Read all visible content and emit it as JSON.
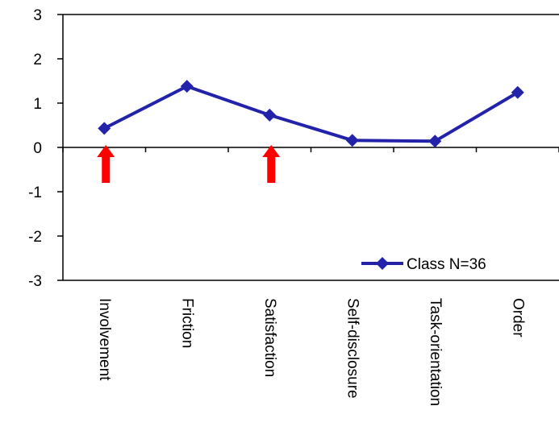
{
  "chart_data": {
    "type": "line",
    "title": "",
    "xlabel": "",
    "ylabel": "",
    "categories": [
      "Involvement",
      "Friction",
      "Satisfaction",
      "Self-disclosure",
      "Task-orientation",
      "Order"
    ],
    "series": [
      {
        "name": "Class  N=36",
        "values": [
          0.43,
          1.38,
          0.73,
          0.16,
          0.14,
          1.24
        ],
        "color": "#2222aa",
        "marker": "diamond"
      }
    ],
    "ylim": [
      -3,
      3
    ],
    "yticks": [
      "3",
      "2",
      "1",
      "0",
      "-1",
      "-2",
      "-3"
    ],
    "grid": false,
    "legend": {
      "position": "bottom-right",
      "label": "Class  N=36"
    },
    "annotations": [
      {
        "type": "arrow",
        "category": "Involvement",
        "color": "#ff0000"
      },
      {
        "type": "arrow",
        "category": "Satisfaction",
        "color": "#ff0000"
      }
    ],
    "colors": {
      "axis": "#000000",
      "series": "#2222aa",
      "arrow": "#ff0000"
    }
  }
}
